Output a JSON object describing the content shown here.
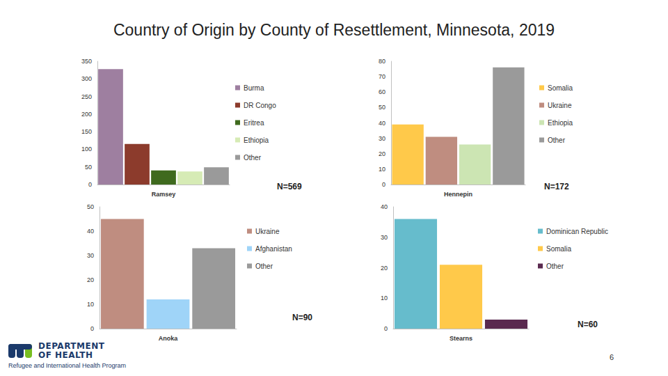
{
  "title": "Country of Origin by County of Resettlement, Minnesota, 2019",
  "chart_data": [
    {
      "type": "bar",
      "xlabel": "Ramsey",
      "annotation": "N=569",
      "categories": [
        "Burma",
        "DR Congo",
        "Eritrea",
        "Ethiopia",
        "Other"
      ],
      "values": [
        328,
        115,
        40,
        37,
        49
      ],
      "colors": [
        "#9e7fa0",
        "#8c3b2c",
        "#3f6a1e",
        "#d6ebb5",
        "#9a9a9a"
      ],
      "ylim": [
        0,
        350
      ],
      "yticks": [
        0,
        50,
        100,
        150,
        200,
        250,
        300,
        350
      ],
      "grid": false,
      "legend": "right",
      "tick_labels": "y"
    },
    {
      "type": "bar",
      "xlabel": "Hennepin",
      "annotation": "N=172",
      "categories": [
        "Somalia",
        "Ukraine",
        "Ethiopia",
        "Other"
      ],
      "values": [
        39,
        31,
        26,
        76
      ],
      "colors": [
        "#ffc94a",
        "#bf8d80",
        "#cce5b3",
        "#9a9a9a"
      ],
      "ylim": [
        0,
        80
      ],
      "yticks": [
        0,
        10,
        20,
        30,
        40,
        50,
        60,
        70,
        80
      ],
      "grid": false,
      "legend": "right",
      "tick_labels": "y"
    },
    {
      "type": "bar",
      "xlabel": "Anoka",
      "annotation": "N=90",
      "categories": [
        "Ukraine",
        "Afghanistan",
        "Other"
      ],
      "values": [
        45,
        12,
        33
      ],
      "colors": [
        "#bf8d80",
        "#9fd4f8",
        "#9a9a9a"
      ],
      "ylim": [
        0,
        50
      ],
      "yticks": [
        0,
        10,
        20,
        30,
        40,
        50
      ],
      "grid": false,
      "legend": "right",
      "tick_labels": "y"
    },
    {
      "type": "bar",
      "xlabel": "Stearns",
      "annotation": "N=60",
      "categories": [
        "Dominican Republic",
        "Somalia",
        "Other"
      ],
      "values": [
        36,
        21,
        3
      ],
      "colors": [
        "#66bccc",
        "#ffc94a",
        "#5a2a4f"
      ],
      "ylim": [
        0,
        40
      ],
      "yticks": [
        0,
        10,
        20,
        30,
        40
      ],
      "grid": false,
      "legend": "right",
      "tick_labels": "y"
    }
  ],
  "footer": {
    "logo_lines": [
      "DEPARTMENT",
      "OF HEALTH"
    ],
    "program": "Refugee and International Health Program",
    "page": 6
  }
}
